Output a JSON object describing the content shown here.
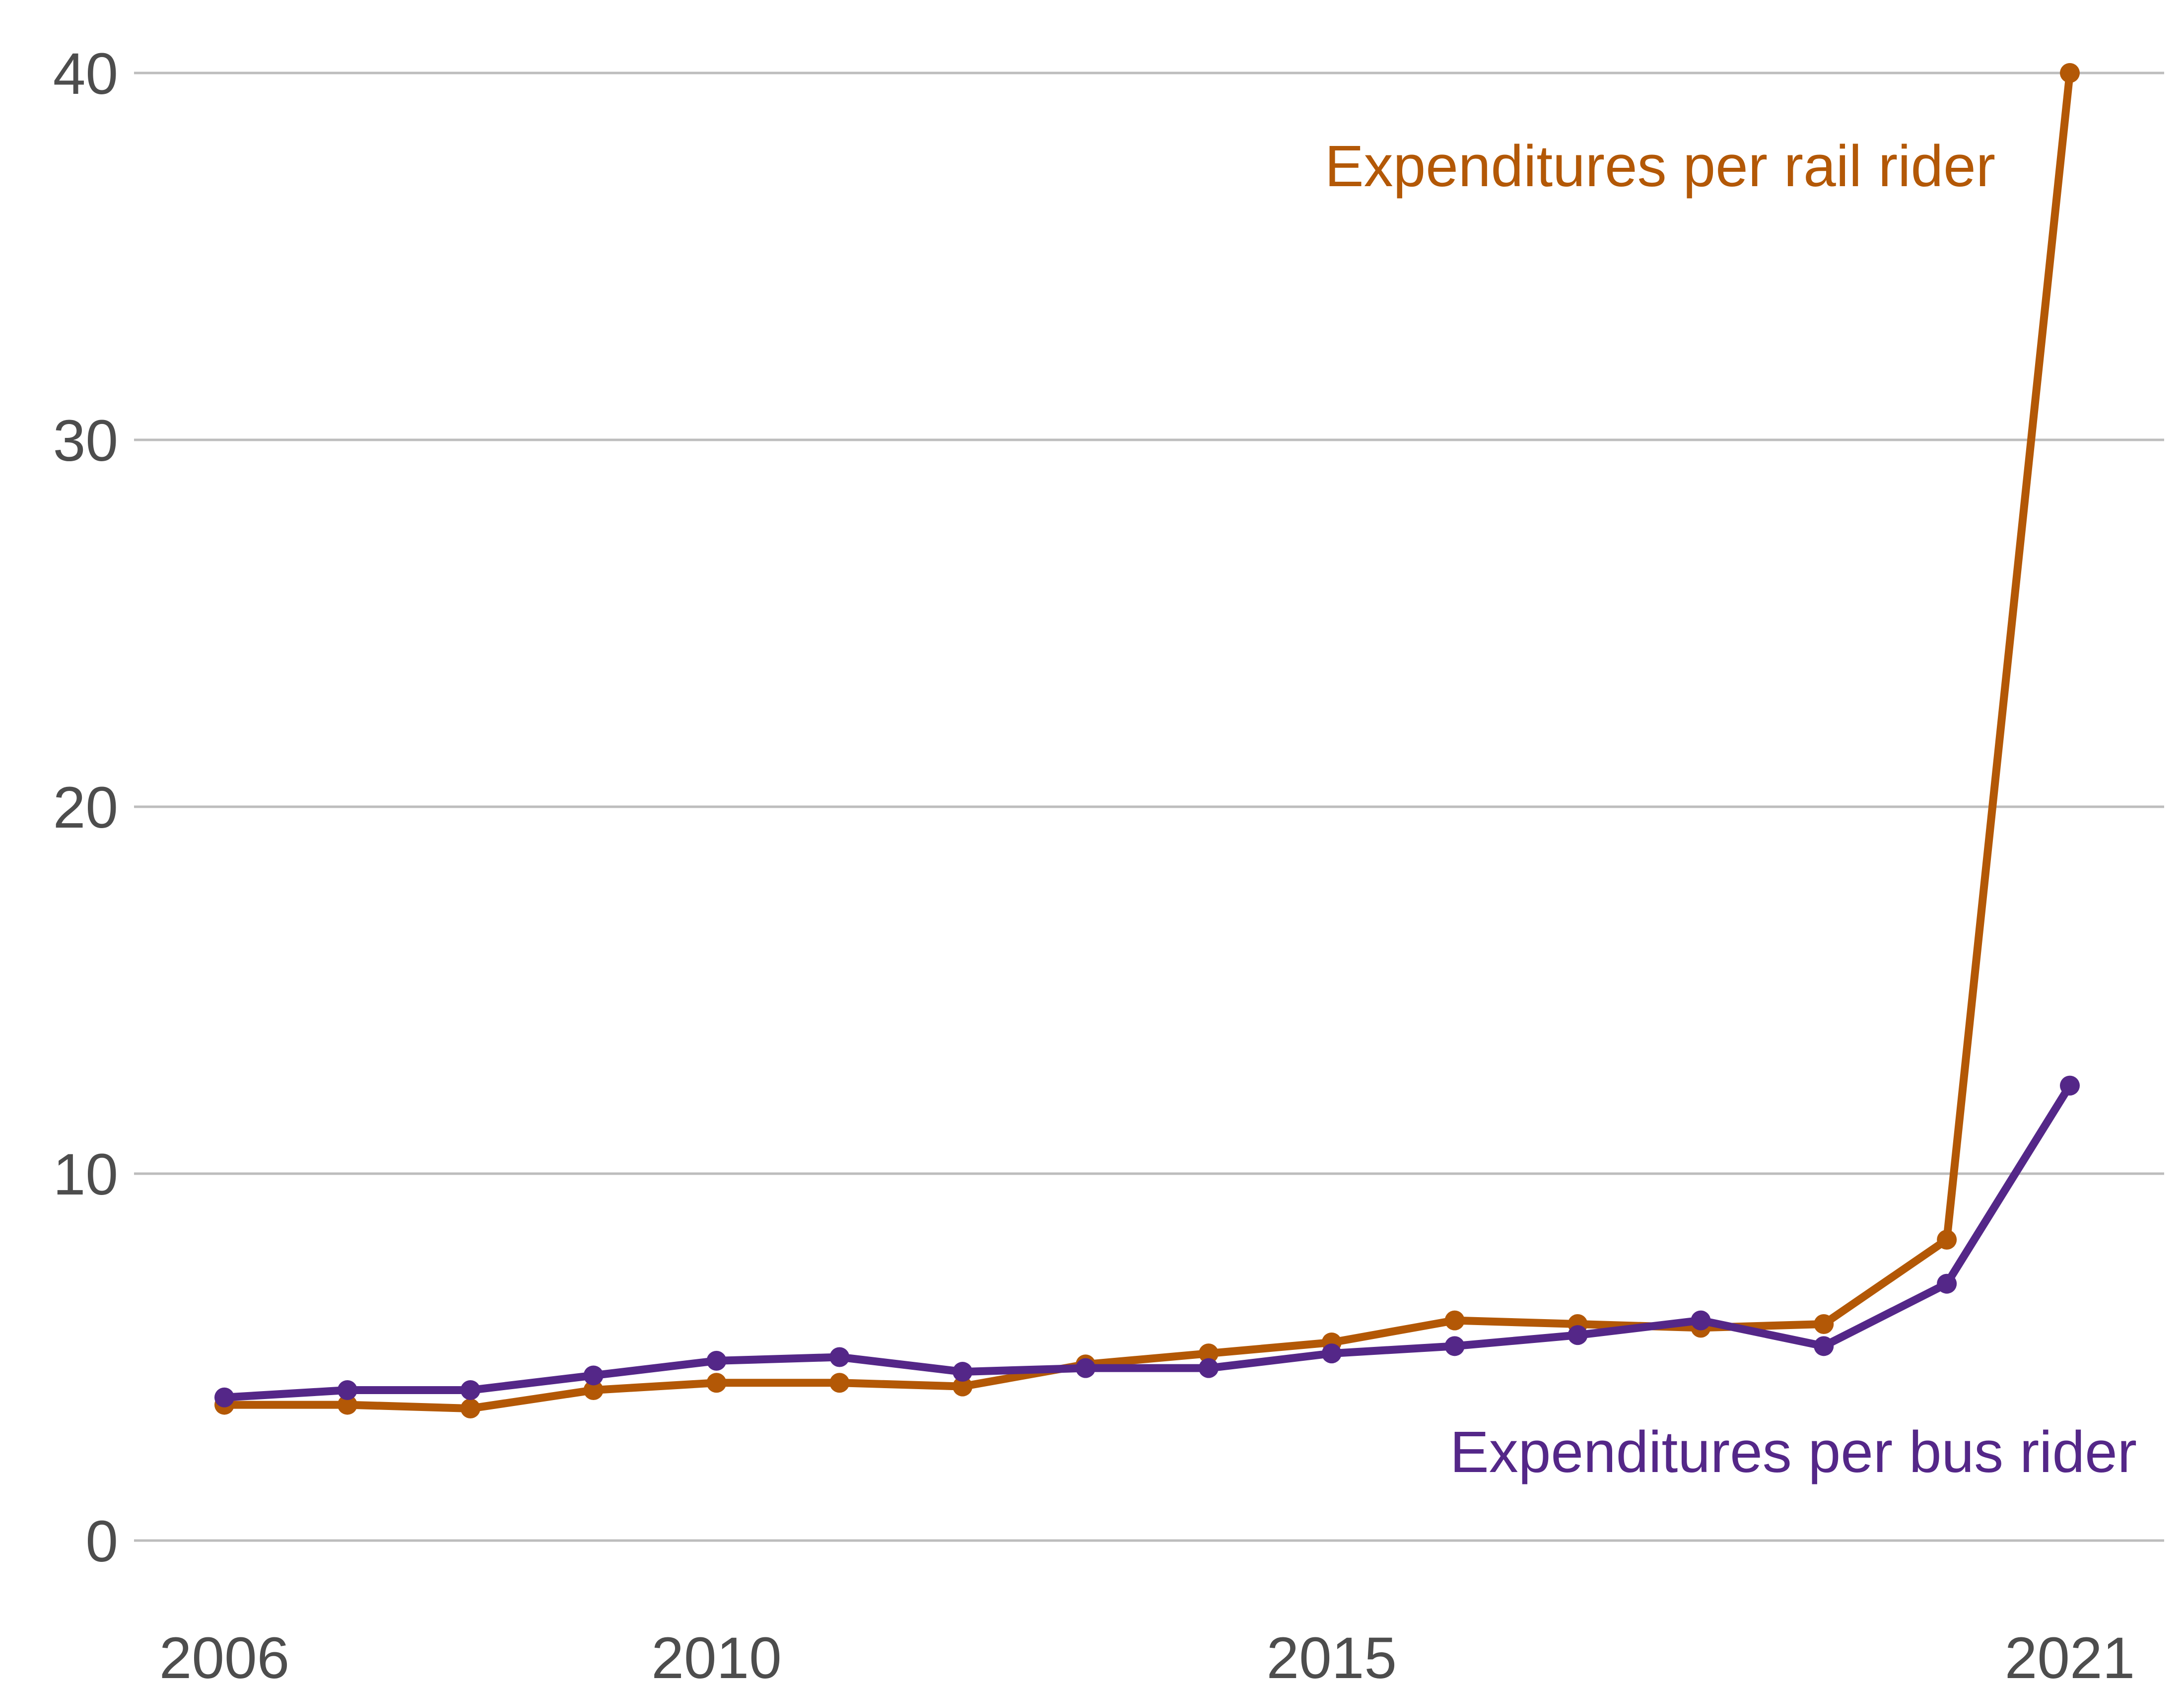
{
  "chart_data": {
    "type": "line",
    "x": [
      2006,
      2007,
      2008,
      2009,
      2010,
      2011,
      2012,
      2013,
      2014,
      2015,
      2016,
      2017,
      2018,
      2019,
      2020,
      2021
    ],
    "series": [
      {
        "name": "Expenditures per rail rider",
        "color": "#b35806",
        "values": [
          3.7,
          3.7,
          3.6,
          4.1,
          4.3,
          4.3,
          4.2,
          4.8,
          5.1,
          5.4,
          6.0,
          5.9,
          5.8,
          5.9,
          8.2,
          40.0
        ]
      },
      {
        "name": "Expenditures per bus rider",
        "color": "#542788",
        "values": [
          3.9,
          4.1,
          4.1,
          4.5,
          4.9,
          5.0,
          4.6,
          4.7,
          4.7,
          5.1,
          5.3,
          5.6,
          6.0,
          5.3,
          7.0,
          12.4
        ]
      }
    ],
    "xticks": [
      "2006",
      "2010",
      "2015",
      "2021"
    ],
    "yticks": [
      "0",
      "10",
      "20",
      "30",
      "40"
    ],
    "xlim": [
      2006,
      2021
    ],
    "ylim": [
      0,
      40
    ],
    "grid": "horizontal",
    "legend": "direct labels"
  }
}
